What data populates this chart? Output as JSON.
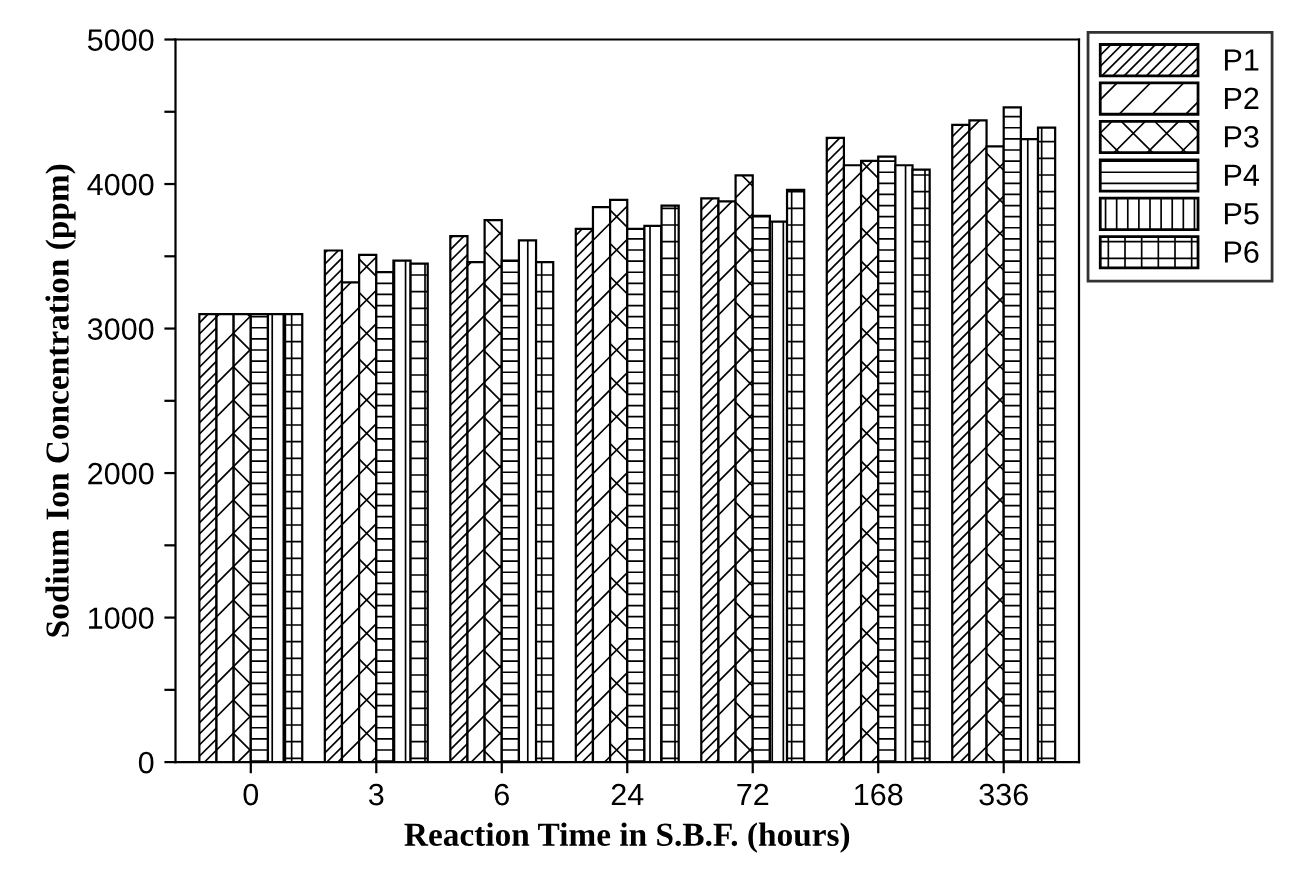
{
  "chart_data": {
    "type": "bar",
    "xlabel": "Reaction Time in S.B.F. (hours)",
    "ylabel": "Sodium Ion Concentration (ppm)",
    "categories": [
      "0",
      "3",
      "6",
      "24",
      "72",
      "168",
      "336"
    ],
    "series": [
      {
        "name": "P1",
        "color": "#000000",
        "values": [
          3100,
          3540,
          3640,
          3690,
          3900,
          4320,
          4410
        ]
      },
      {
        "name": "P2",
        "color": "#000000",
        "values": [
          3100,
          3320,
          3460,
          3840,
          3880,
          4130,
          4440
        ]
      },
      {
        "name": "P3",
        "color": "#000000",
        "values": [
          3100,
          3510,
          3750,
          3890,
          4060,
          4160,
          4260
        ]
      },
      {
        "name": "P4",
        "color": "#000000",
        "values": [
          3100,
          3390,
          3470,
          3690,
          3780,
          4190,
          4530
        ]
      },
      {
        "name": "P5",
        "color": "#000000",
        "values": [
          3100,
          3470,
          3610,
          3710,
          3740,
          4130,
          4310
        ]
      },
      {
        "name": "P6",
        "color": "#000000",
        "values": [
          3100,
          3450,
          3460,
          3850,
          3960,
          4100,
          4390
        ]
      }
    ],
    "ylim": [
      0,
      5000
    ],
    "yticks": [
      0,
      {
        "value": 500,
        "label": null
      },
      1000,
      {
        "value": 1500,
        "label": null
      },
      2000,
      {
        "value": 2500,
        "label": null
      },
      3000,
      {
        "value": 3500,
        "label": null
      },
      4000,
      {
        "value": 4500,
        "label": null
      },
      5000
    ],
    "grid": false,
    "legend": "right"
  }
}
